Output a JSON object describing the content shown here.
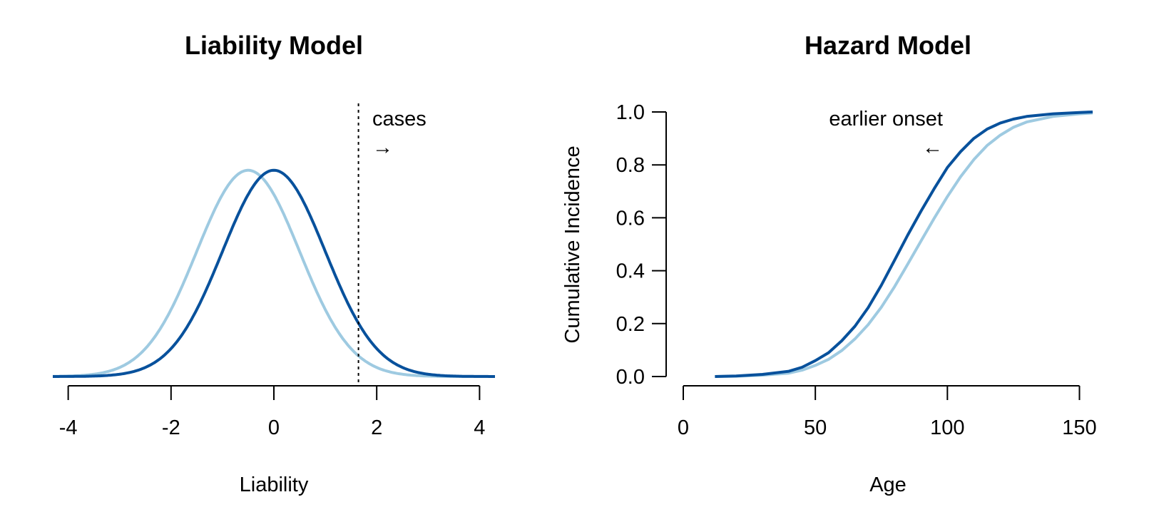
{
  "colors": {
    "dark_blue": "#08519c",
    "light_blue": "#9ecae1"
  },
  "chart_data": [
    {
      "type": "line",
      "title": "Liability Model",
      "xlabel": "Liability",
      "ylabel": "",
      "xlim": [
        -4.3,
        4.3
      ],
      "ylim": [
        0,
        0.4
      ],
      "x_ticks": [
        "-4",
        "-2",
        "0",
        "2",
        "4"
      ],
      "y_axis_shown": false,
      "grid": false,
      "series": [
        {
          "color": "light_blue",
          "distribution": "normal density",
          "mean": -0.5,
          "sd": 1.0
        },
        {
          "color": "dark_blue",
          "distribution": "normal density",
          "mean": 0.0,
          "sd": 1.0
        }
      ],
      "threshold": {
        "x": 1.645,
        "style": "dotted"
      },
      "annotation": {
        "text": "cases",
        "arrow": "→"
      }
    },
    {
      "type": "line",
      "title": "Hazard Model",
      "xlabel": "Age",
      "ylabel": "Cumulative Incidence",
      "xlim": [
        0,
        155
      ],
      "ylim": [
        0,
        1.0
      ],
      "x_ticks": [
        "0",
        "50",
        "100",
        "150"
      ],
      "y_ticks": [
        "0.0",
        "0.2",
        "0.4",
        "0.6",
        "0.8",
        "1.0"
      ],
      "grid": false,
      "series": [
        {
          "color": "dark_blue",
          "x": [
            12,
            20,
            30,
            40,
            45,
            50,
            55,
            60,
            65,
            70,
            75,
            80,
            85,
            90,
            95,
            100,
            105,
            110,
            115,
            120,
            125,
            130,
            140,
            150,
            155
          ],
          "y": [
            0.0,
            0.002,
            0.008,
            0.02,
            0.035,
            0.06,
            0.09,
            0.135,
            0.19,
            0.26,
            0.345,
            0.44,
            0.535,
            0.625,
            0.71,
            0.79,
            0.85,
            0.9,
            0.935,
            0.958,
            0.973,
            0.983,
            0.993,
            0.998,
            1.0
          ]
        },
        {
          "color": "light_blue",
          "x": [
            12,
            20,
            30,
            40,
            45,
            50,
            55,
            60,
            65,
            70,
            75,
            80,
            85,
            90,
            95,
            100,
            105,
            110,
            115,
            120,
            125,
            130,
            140,
            150,
            155
          ],
          "y": [
            0.0,
            0.001,
            0.005,
            0.013,
            0.024,
            0.042,
            0.065,
            0.098,
            0.142,
            0.196,
            0.262,
            0.34,
            0.425,
            0.512,
            0.598,
            0.68,
            0.755,
            0.82,
            0.873,
            0.912,
            0.942,
            0.962,
            0.983,
            0.993,
            0.996
          ]
        }
      ],
      "annotation": {
        "text": "earlier onset",
        "arrow": "←"
      }
    }
  ]
}
